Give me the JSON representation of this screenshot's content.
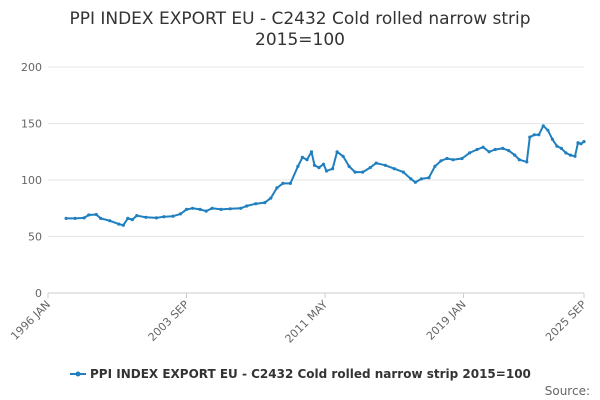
{
  "chart_data": {
    "type": "line",
    "title": "PPI INDEX EXPORT EU - C2432 Cold rolled narrow strip",
    "subtitle": "2015=100",
    "xlabel": "",
    "ylabel": "",
    "ylim": [
      0,
      200
    ],
    "y_ticks": [
      "0",
      "50",
      "100",
      "150",
      "200"
    ],
    "x_range": [
      "1996-01",
      "2025-09"
    ],
    "x_ticks": [
      {
        "date": "1996-01",
        "label": "1996 JAN"
      },
      {
        "date": "2003-09",
        "label": "2003 SEP"
      },
      {
        "date": "2011-05",
        "label": "2011 MAY"
      },
      {
        "date": "2019-01",
        "label": "2019 JAN"
      },
      {
        "date": "2025-09",
        "label": "2025 SEP"
      }
    ],
    "grid": true,
    "legend_position": "bottom",
    "series": [
      {
        "name": "PPI INDEX EXPORT EU - C2432 Cold rolled narrow strip 2015=100",
        "color": "#1f7fbf",
        "points": [
          [
            "1997-01",
            66
          ],
          [
            "1997-07",
            66
          ],
          [
            "1998-01",
            66.5
          ],
          [
            "1998-04",
            69
          ],
          [
            "1998-09",
            69.5
          ],
          [
            "1998-12",
            66
          ],
          [
            "1999-06",
            64
          ],
          [
            "1999-12",
            61
          ],
          [
            "2000-03",
            60
          ],
          [
            "2000-06",
            66
          ],
          [
            "2000-09",
            65
          ],
          [
            "2000-12",
            68.5
          ],
          [
            "2001-06",
            67
          ],
          [
            "2002-01",
            66.5
          ],
          [
            "2002-06",
            67.5
          ],
          [
            "2002-12",
            68
          ],
          [
            "2003-05",
            70
          ],
          [
            "2003-09",
            74
          ],
          [
            "2004-01",
            75
          ],
          [
            "2004-06",
            74
          ],
          [
            "2004-10",
            72.5
          ],
          [
            "2005-02",
            75
          ],
          [
            "2005-08",
            74
          ],
          [
            "2006-02",
            74.5
          ],
          [
            "2006-09",
            75
          ],
          [
            "2007-01",
            77
          ],
          [
            "2007-07",
            79
          ],
          [
            "2008-01",
            80
          ],
          [
            "2008-05",
            84
          ],
          [
            "2008-09",
            93
          ],
          [
            "2009-01",
            97
          ],
          [
            "2009-06",
            97
          ],
          [
            "2009-11",
            112
          ],
          [
            "2010-02",
            120
          ],
          [
            "2010-05",
            118
          ],
          [
            "2010-08",
            125
          ],
          [
            "2010-10",
            113
          ],
          [
            "2011-01",
            111
          ],
          [
            "2011-04",
            114
          ],
          [
            "2011-06",
            108
          ],
          [
            "2011-10",
            110
          ],
          [
            "2012-01",
            125
          ],
          [
            "2012-05",
            121
          ],
          [
            "2012-09",
            112
          ],
          [
            "2013-01",
            107
          ],
          [
            "2013-06",
            107
          ],
          [
            "2013-11",
            111
          ],
          [
            "2014-03",
            115
          ],
          [
            "2014-09",
            113
          ],
          [
            "2015-03",
            110
          ],
          [
            "2015-09",
            107
          ],
          [
            "2016-02",
            101
          ],
          [
            "2016-05",
            98
          ],
          [
            "2016-09",
            101
          ],
          [
            "2017-02",
            102
          ],
          [
            "2017-06",
            112
          ],
          [
            "2017-10",
            117
          ],
          [
            "2018-02",
            119
          ],
          [
            "2018-06",
            118
          ],
          [
            "2018-12",
            119
          ],
          [
            "2019-05",
            124
          ],
          [
            "2019-10",
            127
          ],
          [
            "2020-02",
            129
          ],
          [
            "2020-06",
            125
          ],
          [
            "2020-10",
            127
          ],
          [
            "2021-03",
            128
          ],
          [
            "2021-07",
            126
          ],
          [
            "2021-11",
            122
          ],
          [
            "2022-02",
            118
          ],
          [
            "2022-07",
            116
          ],
          [
            "2022-09",
            138
          ],
          [
            "2022-12",
            140
          ],
          [
            "2023-03",
            140
          ],
          [
            "2023-06",
            148
          ],
          [
            "2023-09",
            144
          ],
          [
            "2023-12",
            136
          ],
          [
            "2024-03",
            130
          ],
          [
            "2024-06",
            128
          ],
          [
            "2024-09",
            124
          ],
          [
            "2024-12",
            122
          ],
          [
            "2025-03",
            121
          ],
          [
            "2025-05",
            133
          ],
          [
            "2025-07",
            132
          ],
          [
            "2025-09",
            134
          ]
        ]
      }
    ]
  },
  "footer": {
    "source_label": "Source:"
  }
}
